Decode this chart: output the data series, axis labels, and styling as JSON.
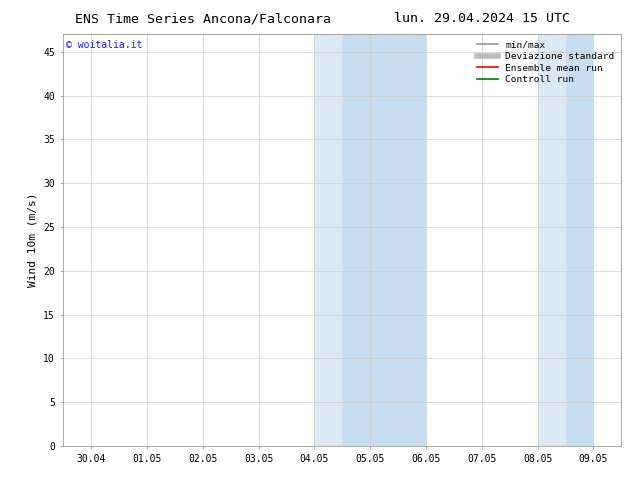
{
  "title": "ENS Time Series Ancona/Falconara",
  "title_date": "lun. 29.04.2024 15 UTC",
  "ylabel": "Wind 10m (m/s)",
  "watermark": "© woitalia.it",
  "xlim_dates": [
    "30.04",
    "01.05",
    "02.05",
    "03.05",
    "04.05",
    "05.05",
    "06.05",
    "07.05",
    "08.05",
    "09.05"
  ],
  "ylim": [
    0,
    47
  ],
  "yticks": [
    0,
    5,
    10,
    15,
    20,
    25,
    30,
    35,
    40,
    45
  ],
  "shaded_regions": [
    {
      "xstart": 4.0,
      "xend": 4.5,
      "color": "#dce9f5"
    },
    {
      "xstart": 4.5,
      "xend": 6.0,
      "color": "#c8ddf0"
    },
    {
      "xstart": 8.0,
      "xend": 8.5,
      "color": "#dce9f5"
    },
    {
      "xstart": 8.5,
      "xend": 9.0,
      "color": "#c8ddf0"
    }
  ],
  "legend_items": [
    {
      "label": "min/max",
      "color": "#999999",
      "lw": 1.2
    },
    {
      "label": "Deviazione standard",
      "color": "#bbbbbb",
      "lw": 4
    },
    {
      "label": "Ensemble mean run",
      "color": "red",
      "lw": 1.2
    },
    {
      "label": "Controll run",
      "color": "green",
      "lw": 1.2
    }
  ],
  "bg_color": "#ffffff",
  "plot_bg_color": "#ffffff",
  "tick_fontsize": 7,
  "label_fontsize": 8,
  "title_fontsize": 9.5
}
